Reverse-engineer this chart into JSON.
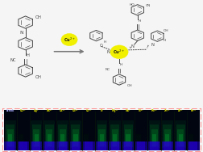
{
  "bg_color": "#f5f5f5",
  "molecule_color": "#444444",
  "arrow_color": "#777777",
  "cu_sphere_color": "#f0f000",
  "border_color": "#ff8888",
  "labels": [
    "blank",
    "Cu²⁺",
    "Ag⁺",
    "Ba²⁺",
    "Ca²⁺",
    "Cd²⁺",
    "Co²⁺",
    "K⁺",
    "Mg²⁺",
    "Na⁺",
    "Ni²⁺",
    "Pb²⁺",
    "Zn²⁺",
    "Al³⁺",
    "Fe³⁺"
  ],
  "n_vials": 15,
  "dark_vials": [
    1,
    6,
    10,
    14
  ],
  "label_color": "#cccc00",
  "label_color_blank": "#aaaaff",
  "strip_bg": "#000510",
  "vial_sep_color": "#112211",
  "green_glow_color": "#00bb33",
  "blue_base_color": "#2200cc"
}
